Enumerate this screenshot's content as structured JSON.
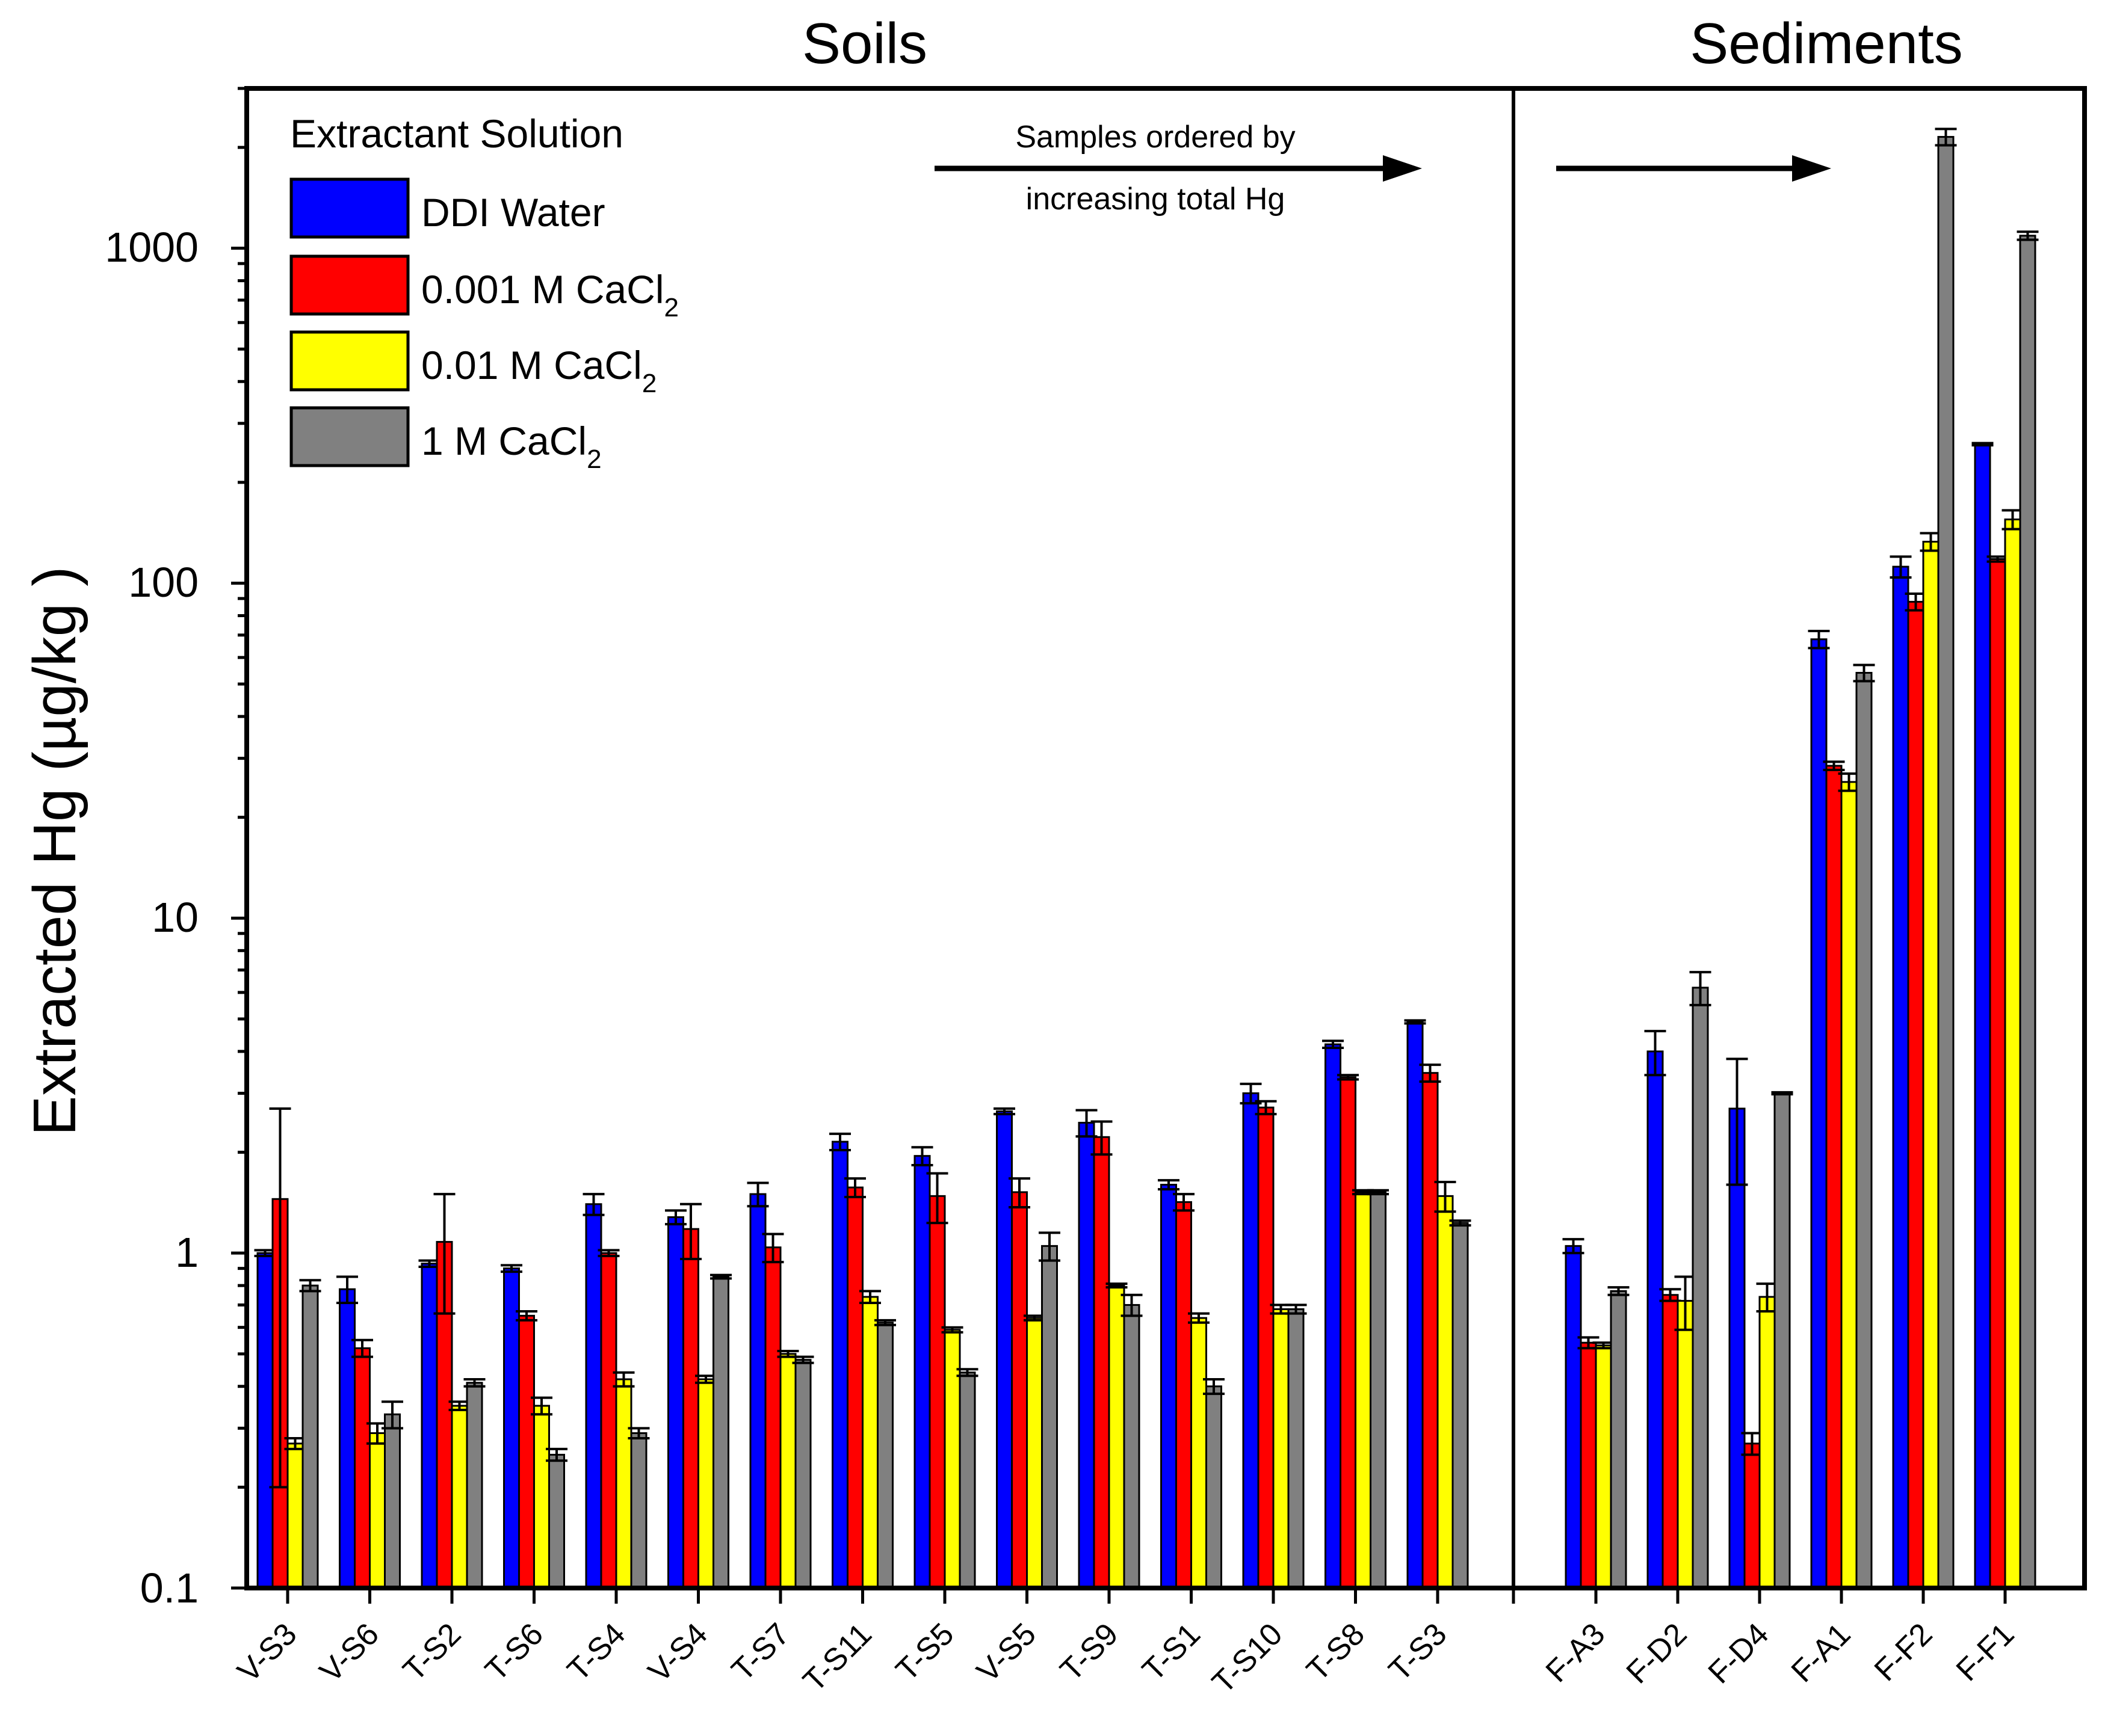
{
  "chart_data": {
    "type": "bar",
    "yscale": "log",
    "ylim": [
      0.1,
      3000
    ],
    "ylabel": "Extracted Hg (µg/kg )",
    "yticks": [
      "0.1",
      "1",
      "10",
      "100",
      "1000"
    ],
    "panels": [
      {
        "title": "Soils",
        "categories": [
          "V-S3",
          "V-S6",
          "T-S2",
          "T-S6",
          "T-S4",
          "V-S4",
          "T-S7",
          "T-S11",
          "T-S5",
          "V-S5",
          "T-S9",
          "T-S1",
          "T-S10",
          "T-S8",
          "T-S3"
        ]
      },
      {
        "title": "Sediments",
        "categories": [
          "F-A3",
          "F-D2",
          "F-D4",
          "F-A1",
          "F-F2",
          "F-F1"
        ]
      }
    ],
    "legend_title": "Extractant Solution",
    "legend_placement": "top-left",
    "series": [
      {
        "name": "DDI Water",
        "label_main": "DDI Water",
        "label_sub": "",
        "label_main2": "",
        "color": "#0000ff",
        "values": [
          1.0,
          0.78,
          0.93,
          0.9,
          1.4,
          1.28,
          1.5,
          2.15,
          1.95,
          2.65,
          2.45,
          1.6,
          3.0,
          4.2,
          4.9,
          1.05,
          4.0,
          2.7,
          68,
          112,
          260
        ],
        "errors": [
          0.02,
          0.07,
          0.02,
          0.02,
          0.1,
          0.06,
          0.12,
          0.12,
          0.12,
          0.05,
          0.22,
          0.05,
          0.2,
          0.1,
          0.05,
          0.05,
          0.6,
          1.1,
          4,
          8,
          2
        ]
      },
      {
        "name": "0.001 M CaCl2",
        "label_main": "0.001 M CaCl",
        "label_sub": "2",
        "label_main2": "",
        "color": "#ff0000",
        "values": [
          1.45,
          0.52,
          1.08,
          0.65,
          1.0,
          1.18,
          1.04,
          1.57,
          1.48,
          1.52,
          2.22,
          1.42,
          2.72,
          3.35,
          3.45,
          0.54,
          0.75,
          0.27,
          28.5,
          88,
          118
        ],
        "errors": [
          1.25,
          0.03,
          0.42,
          0.02,
          0.02,
          0.22,
          0.1,
          0.1,
          0.25,
          0.15,
          0.25,
          0.08,
          0.12,
          0.05,
          0.2,
          0.02,
          0.03,
          0.02,
          0.8,
          5,
          2
        ]
      },
      {
        "name": "0.01 M CaCl2",
        "label_main": "0.01 M CaCl",
        "label_sub": "2",
        "label_main2": "",
        "color": "#ffff00",
        "values": [
          0.27,
          0.29,
          0.35,
          0.35,
          0.42,
          0.42,
          0.5,
          0.74,
          0.59,
          0.64,
          0.8,
          0.64,
          0.68,
          1.52,
          1.48,
          0.53,
          0.72,
          0.74,
          25.5,
          133,
          155
        ],
        "errors": [
          0.01,
          0.02,
          0.01,
          0.02,
          0.02,
          0.01,
          0.01,
          0.03,
          0.01,
          0.01,
          0.01,
          0.02,
          0.02,
          0.02,
          0.15,
          0.01,
          0.13,
          0.07,
          1.5,
          8,
          10
        ]
      },
      {
        "name": "1 M CaCl2",
        "label_main": "1 M CaCl",
        "label_sub": "2",
        "label_main2": "",
        "color": "#808080",
        "values": [
          0.8,
          0.33,
          0.41,
          0.25,
          0.29,
          0.85,
          0.48,
          0.62,
          0.44,
          1.05,
          0.7,
          0.4,
          0.68,
          1.52,
          1.23,
          0.77,
          6.2,
          3.0,
          54,
          2150,
          1090
        ],
        "errors": [
          0.03,
          0.03,
          0.01,
          0.01,
          0.01,
          0.01,
          0.01,
          0.01,
          0.01,
          0.1,
          0.05,
          0.02,
          0.02,
          0.02,
          0.02,
          0.02,
          0.7,
          0.02,
          3,
          120,
          30
        ]
      }
    ],
    "annotations": [
      {
        "text_line1": "Samples ordered by",
        "text_line2": "increasing total Hg",
        "arrow": "right"
      }
    ]
  }
}
